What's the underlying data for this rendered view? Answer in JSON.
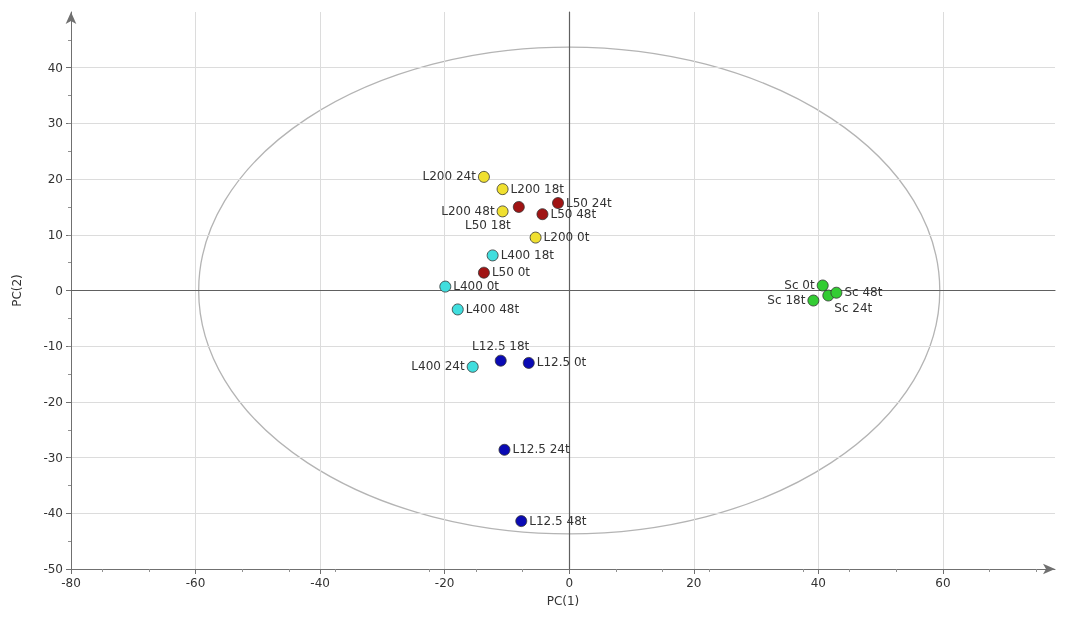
{
  "chart_data": {
    "type": "scatter",
    "xlabel": "PC(1)",
    "ylabel": "PC(2)",
    "xlim": [
      -80,
      78
    ],
    "ylim": [
      -50,
      50
    ],
    "xticks": [
      -80,
      -60,
      -40,
      -20,
      0,
      20,
      40,
      60
    ],
    "yticks": [
      -50,
      -40,
      -30,
      -20,
      -10,
      0,
      10,
      20,
      30,
      40
    ],
    "grid": true,
    "marker": "circle",
    "series": [
      {
        "color": "#f0e030",
        "x": [
          -13.7,
          -10.7,
          -10.7,
          -5.4
        ],
        "values": [
          20.4,
          18.2,
          14.2,
          9.5
        ]
      },
      {
        "color": "#a01414",
        "x": [
          -8.1,
          -1.8,
          -4.3,
          -13.7
        ],
        "values": [
          15.0,
          15.7,
          13.7,
          3.2
        ]
      },
      {
        "color": "#40dede",
        "x": [
          -12.3,
          -19.9,
          -17.9,
          -15.5
        ],
        "values": [
          6.3,
          0.7,
          -3.4,
          -13.7
        ]
      },
      {
        "color": "#0a0ab4",
        "x": [
          -11.0,
          -6.5,
          -10.4,
          -7.7
        ],
        "values": [
          -12.6,
          -13.0,
          -28.6,
          -41.4
        ]
      },
      {
        "color": "#33cc33",
        "x": [
          40.7,
          39.2,
          41.6,
          42.9
        ],
        "values": [
          0.9,
          -1.8,
          -0.9,
          -0.4
        ]
      }
    ],
    "annotations": [
      {
        "text": "L200 24t",
        "x": -13.7,
        "y": 20.4
      },
      {
        "text": "L200 18t",
        "x": -10.7,
        "y": 18.2
      },
      {
        "text": "L200 48t",
        "x": -10.7,
        "y": 14.2
      },
      {
        "text": "L200 0t",
        "x": -5.4,
        "y": 9.5
      },
      {
        "text": "L50 18t",
        "x": -8.1,
        "y": 15.0
      },
      {
        "text": "L50 24t",
        "x": -1.8,
        "y": 15.7
      },
      {
        "text": "L50 48t",
        "x": -4.3,
        "y": 13.7
      },
      {
        "text": "L50 0t",
        "x": -13.7,
        "y": 3.2
      },
      {
        "text": "L400 18t",
        "x": -12.3,
        "y": 6.3
      },
      {
        "text": "L400 0t",
        "x": -19.9,
        "y": 0.7
      },
      {
        "text": "L400 48t",
        "x": -17.9,
        "y": -3.4
      },
      {
        "text": "L400 24t",
        "x": -15.5,
        "y": -13.7
      },
      {
        "text": "L12.5 18t",
        "x": -11.0,
        "y": -12.6
      },
      {
        "text": "L12.5 0t",
        "x": -6.5,
        "y": -13.0
      },
      {
        "text": "L12.5 24t",
        "x": -10.4,
        "y": -28.6
      },
      {
        "text": "L12.5 48t",
        "x": -7.7,
        "y": -41.4
      },
      {
        "text": "Sc 0t",
        "x": 40.7,
        "y": 0.9
      },
      {
        "text": "Sc 18t",
        "x": 39.2,
        "y": -1.8
      },
      {
        "text": "Sc 24t",
        "x": 41.6,
        "y": -0.9
      },
      {
        "text": "Sc 48t",
        "x": 42.9,
        "y": -0.4
      }
    ]
  }
}
